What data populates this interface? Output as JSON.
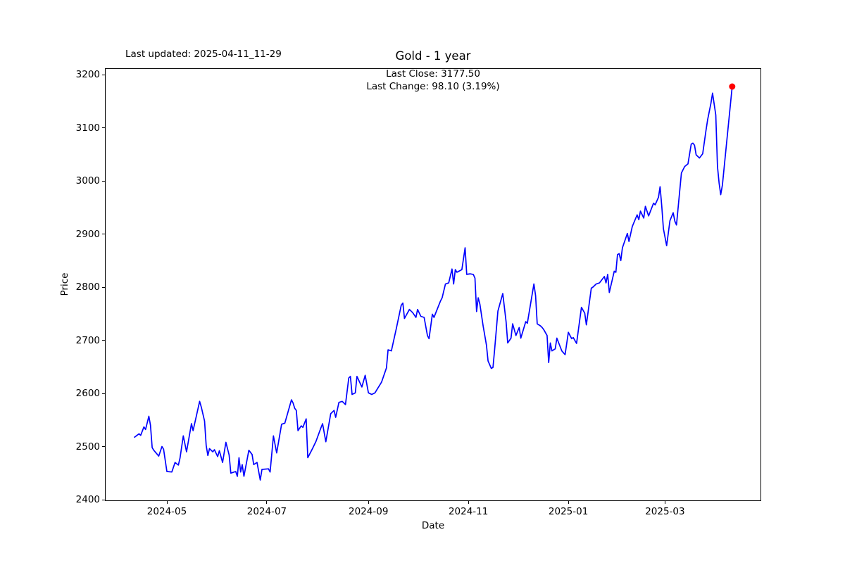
{
  "header": {
    "last_updated": "Last updated: 2025-04-11_11-29"
  },
  "chart_data": {
    "type": "line",
    "title": "Gold - 1 year",
    "xlabel": "Date",
    "ylabel": "Price",
    "annotations": {
      "last_close": "Last Close: 3177.50",
      "last_change": "Last Change: 98.10 (3.19%)"
    },
    "last_close": 3177.5,
    "last_change": 98.1,
    "last_change_pct": 3.19,
    "line_color": "#0000ff",
    "marker_color": "#ff0000",
    "legend": "none",
    "grid": false,
    "x_ticks": [
      "2024-05",
      "2024-07",
      "2024-09",
      "2024-11",
      "2025-01",
      "2025-03"
    ],
    "y_ticks": [
      2400,
      2500,
      2600,
      2700,
      2800,
      2900,
      3000,
      3100,
      3200
    ],
    "ylim": [
      2397,
      3212
    ],
    "series_name": "Gold",
    "points": [
      [
        "2024-04-11",
        2517
      ],
      [
        "2024-04-14",
        2524
      ],
      [
        "2024-04-15",
        2521
      ],
      [
        "2024-04-17",
        2537
      ],
      [
        "2024-04-18",
        2532
      ],
      [
        "2024-04-20",
        2557
      ],
      [
        "2024-04-21",
        2540
      ],
      [
        "2024-04-22",
        2498
      ],
      [
        "2024-04-23",
        2493
      ],
      [
        "2024-04-26",
        2482
      ],
      [
        "2024-04-28",
        2500
      ],
      [
        "2024-04-29",
        2495
      ],
      [
        "2024-05-01",
        2453
      ],
      [
        "2024-05-04",
        2452
      ],
      [
        "2024-05-06",
        2470
      ],
      [
        "2024-05-08",
        2465
      ],
      [
        "2024-05-09",
        2478
      ],
      [
        "2024-05-11",
        2520
      ],
      [
        "2024-05-13",
        2490
      ],
      [
        "2024-05-16",
        2543
      ],
      [
        "2024-05-17",
        2530
      ],
      [
        "2024-05-21",
        2585
      ],
      [
        "2024-05-22",
        2574
      ],
      [
        "2024-05-24",
        2548
      ],
      [
        "2024-05-25",
        2502
      ],
      [
        "2024-05-26",
        2483
      ],
      [
        "2024-05-27",
        2496
      ],
      [
        "2024-05-29",
        2490
      ],
      [
        "2024-05-30",
        2494
      ],
      [
        "2024-06-01",
        2481
      ],
      [
        "2024-06-02",
        2492
      ],
      [
        "2024-06-04",
        2470
      ],
      [
        "2024-06-06",
        2508
      ],
      [
        "2024-06-08",
        2484
      ],
      [
        "2024-06-09",
        2450
      ],
      [
        "2024-06-12",
        2453
      ],
      [
        "2024-06-13",
        2444
      ],
      [
        "2024-06-14",
        2479
      ],
      [
        "2024-06-15",
        2452
      ],
      [
        "2024-06-16",
        2466
      ],
      [
        "2024-06-17",
        2444
      ],
      [
        "2024-06-20",
        2493
      ],
      [
        "2024-06-22",
        2485
      ],
      [
        "2024-06-23",
        2466
      ],
      [
        "2024-06-25",
        2470
      ],
      [
        "2024-06-27",
        2437
      ],
      [
        "2024-06-28",
        2457
      ],
      [
        "2024-07-02",
        2458
      ],
      [
        "2024-07-03",
        2452
      ],
      [
        "2024-07-05",
        2520
      ],
      [
        "2024-07-07",
        2488
      ],
      [
        "2024-07-10",
        2542
      ],
      [
        "2024-07-12",
        2544
      ],
      [
        "2024-07-16",
        2588
      ],
      [
        "2024-07-17",
        2582
      ],
      [
        "2024-07-18",
        2572
      ],
      [
        "2024-07-19",
        2568
      ],
      [
        "2024-07-20",
        2530
      ],
      [
        "2024-07-22",
        2539
      ],
      [
        "2024-07-23",
        2536
      ],
      [
        "2024-07-25",
        2552
      ],
      [
        "2024-07-26",
        2479
      ],
      [
        "2024-07-29",
        2497
      ],
      [
        "2024-07-31",
        2510
      ],
      [
        "2024-08-03",
        2535
      ],
      [
        "2024-08-04",
        2543
      ],
      [
        "2024-08-06",
        2509
      ],
      [
        "2024-08-09",
        2562
      ],
      [
        "2024-08-11",
        2568
      ],
      [
        "2024-08-12",
        2555
      ],
      [
        "2024-08-14",
        2583
      ],
      [
        "2024-08-16",
        2585
      ],
      [
        "2024-08-18",
        2579
      ],
      [
        "2024-08-20",
        2629
      ],
      [
        "2024-08-21",
        2632
      ],
      [
        "2024-08-22",
        2598
      ],
      [
        "2024-08-24",
        2601
      ],
      [
        "2024-08-25",
        2632
      ],
      [
        "2024-08-28",
        2612
      ],
      [
        "2024-08-30",
        2634
      ],
      [
        "2024-09-01",
        2601
      ],
      [
        "2024-09-03",
        2598
      ],
      [
        "2024-09-05",
        2601
      ],
      [
        "2024-09-09",
        2621
      ],
      [
        "2024-09-12",
        2648
      ],
      [
        "2024-09-13",
        2682
      ],
      [
        "2024-09-15",
        2680
      ],
      [
        "2024-09-18",
        2722
      ],
      [
        "2024-09-21",
        2766
      ],
      [
        "2024-09-22",
        2770
      ],
      [
        "2024-09-23",
        2741
      ],
      [
        "2024-09-26",
        2758
      ],
      [
        "2024-09-28",
        2752
      ],
      [
        "2024-09-30",
        2743
      ],
      [
        "2024-10-01",
        2758
      ],
      [
        "2024-10-03",
        2745
      ],
      [
        "2024-10-05",
        2743
      ],
      [
        "2024-10-07",
        2709
      ],
      [
        "2024-10-08",
        2703
      ],
      [
        "2024-10-10",
        2749
      ],
      [
        "2024-10-11",
        2743
      ],
      [
        "2024-10-15",
        2774
      ],
      [
        "2024-10-16",
        2780
      ],
      [
        "2024-10-18",
        2806
      ],
      [
        "2024-10-20",
        2808
      ],
      [
        "2024-10-22",
        2834
      ],
      [
        "2024-10-23",
        2806
      ],
      [
        "2024-10-24",
        2833
      ],
      [
        "2024-10-25",
        2828
      ],
      [
        "2024-10-28",
        2833
      ],
      [
        "2024-10-30",
        2874
      ],
      [
        "2024-10-31",
        2824
      ],
      [
        "2024-11-02",
        2825
      ],
      [
        "2024-11-04",
        2824
      ],
      [
        "2024-11-05",
        2817
      ],
      [
        "2024-11-06",
        2754
      ],
      [
        "2024-11-07",
        2780
      ],
      [
        "2024-11-08",
        2768
      ],
      [
        "2024-11-10",
        2727
      ],
      [
        "2024-11-12",
        2691
      ],
      [
        "2024-11-13",
        2661
      ],
      [
        "2024-11-15",
        2647
      ],
      [
        "2024-11-16",
        2649
      ],
      [
        "2024-11-17",
        2682
      ],
      [
        "2024-11-19",
        2755
      ],
      [
        "2024-11-22",
        2788
      ],
      [
        "2024-11-24",
        2735
      ],
      [
        "2024-11-25",
        2695
      ],
      [
        "2024-11-27",
        2704
      ],
      [
        "2024-11-28",
        2731
      ],
      [
        "2024-11-30",
        2709
      ],
      [
        "2024-12-02",
        2724
      ],
      [
        "2024-12-03",
        2704
      ],
      [
        "2024-12-06",
        2735
      ],
      [
        "2024-12-07",
        2732
      ],
      [
        "2024-12-11",
        2806
      ],
      [
        "2024-12-12",
        2784
      ],
      [
        "2024-12-13",
        2731
      ],
      [
        "2024-12-15",
        2727
      ],
      [
        "2024-12-16",
        2724
      ],
      [
        "2024-12-17",
        2720
      ],
      [
        "2024-12-19",
        2709
      ],
      [
        "2024-12-20",
        2658
      ],
      [
        "2024-12-21",
        2695
      ],
      [
        "2024-12-22",
        2680
      ],
      [
        "2024-12-24",
        2684
      ],
      [
        "2024-12-25",
        2704
      ],
      [
        "2024-12-28",
        2680
      ],
      [
        "2024-12-30",
        2673
      ],
      [
        "2025-01-01",
        2715
      ],
      [
        "2025-01-03",
        2703
      ],
      [
        "2025-01-04",
        2705
      ],
      [
        "2025-01-06",
        2694
      ],
      [
        "2025-01-09",
        2762
      ],
      [
        "2025-01-11",
        2751
      ],
      [
        "2025-01-12",
        2729
      ],
      [
        "2025-01-15",
        2798
      ],
      [
        "2025-01-16",
        2800
      ],
      [
        "2025-01-18",
        2806
      ],
      [
        "2025-01-20",
        2808
      ],
      [
        "2025-01-23",
        2820
      ],
      [
        "2025-01-24",
        2808
      ],
      [
        "2025-01-25",
        2824
      ],
      [
        "2025-01-26",
        2790
      ],
      [
        "2025-01-29",
        2830
      ],
      [
        "2025-01-30",
        2828
      ],
      [
        "2025-01-31",
        2861
      ],
      [
        "2025-02-01",
        2863
      ],
      [
        "2025-02-02",
        2850
      ],
      [
        "2025-02-03",
        2874
      ],
      [
        "2025-02-06",
        2901
      ],
      [
        "2025-02-07",
        2886
      ],
      [
        "2025-02-09",
        2914
      ],
      [
        "2025-02-12",
        2936
      ],
      [
        "2025-02-13",
        2927
      ],
      [
        "2025-02-14",
        2943
      ],
      [
        "2025-02-16",
        2930
      ],
      [
        "2025-02-17",
        2952
      ],
      [
        "2025-02-19",
        2934
      ],
      [
        "2025-02-22",
        2958
      ],
      [
        "2025-02-23",
        2955
      ],
      [
        "2025-02-25",
        2969
      ],
      [
        "2025-02-26",
        2989
      ],
      [
        "2025-02-27",
        2952
      ],
      [
        "2025-02-28",
        2910
      ],
      [
        "2025-03-02",
        2878
      ],
      [
        "2025-03-04",
        2925
      ],
      [
        "2025-03-06",
        2940
      ],
      [
        "2025-03-07",
        2924
      ],
      [
        "2025-03-08",
        2917
      ],
      [
        "2025-03-11",
        3015
      ],
      [
        "2025-03-13",
        3027
      ],
      [
        "2025-03-15",
        3032
      ],
      [
        "2025-03-17",
        3069
      ],
      [
        "2025-03-18",
        3071
      ],
      [
        "2025-03-19",
        3067
      ],
      [
        "2025-03-20",
        3049
      ],
      [
        "2025-03-22",
        3043
      ],
      [
        "2025-03-24",
        3051
      ],
      [
        "2025-03-26",
        3095
      ],
      [
        "2025-03-27",
        3115
      ],
      [
        "2025-03-29",
        3146
      ],
      [
        "2025-03-30",
        3165
      ],
      [
        "2025-04-01",
        3124
      ],
      [
        "2025-04-02",
        3027
      ],
      [
        "2025-04-03",
        2996
      ],
      [
        "2025-04-04",
        2974
      ],
      [
        "2025-04-05",
        2992
      ],
      [
        "2025-04-11",
        3177.5
      ]
    ]
  }
}
